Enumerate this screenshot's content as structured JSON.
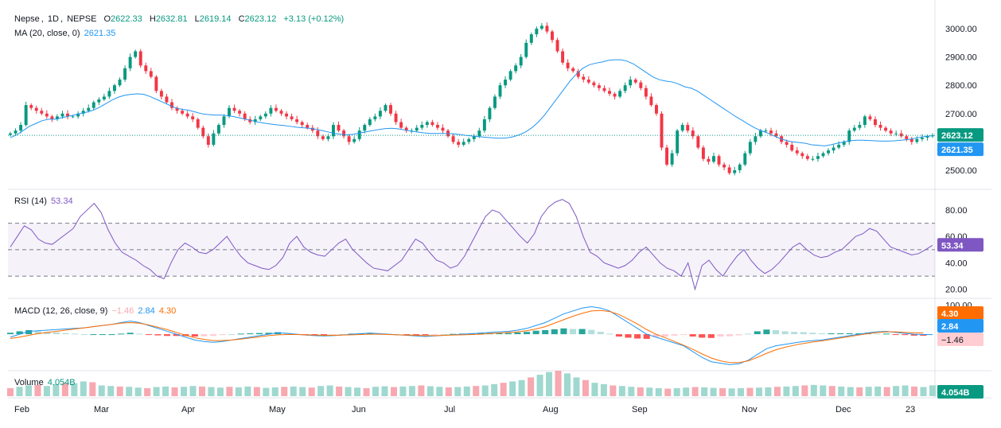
{
  "symbol": {
    "name": "Nepse",
    "interval": "1D",
    "exchange": "NEPSE",
    "open_label": "O",
    "open": "2622.33",
    "high_label": "H",
    "high": "2632.81",
    "low_label": "L",
    "low": "2619.14",
    "close_label": "C",
    "close": "2623.12",
    "change": "+3.13 (+0.12%)"
  },
  "legends": {
    "ma": {
      "title": "MA (20, close, 0)",
      "value": "2621.35"
    },
    "rsi": {
      "title": "RSI (14)",
      "value": "53.34"
    },
    "macd": {
      "title": "MACD (12, 26, close, 9)",
      "hist": "−1.46",
      "macd": "2.84",
      "signal": "4.30"
    },
    "volume": {
      "title": "Volume",
      "value": "4.054B"
    }
  },
  "badges": {
    "price": "2623.12",
    "ma": "2621.35",
    "rsi": "53.34",
    "macd_signal": "4.30",
    "macd_line": "2.84",
    "macd_hist": "−1.46",
    "volume": "4.054B"
  },
  "colors": {
    "up": "#089981",
    "down": "#f23645",
    "ma": "#2196f3",
    "rsi": "#7e57c2",
    "macd": "#2196f3",
    "signal": "#ff6d00",
    "grid": "#e0e3eb",
    "text": "#131722"
  },
  "chart_data": [
    {
      "type": "candlestick",
      "title": "Nepse, 1D, NEPSE",
      "x_ticks": [
        "Feb",
        "Mar",
        "Apr",
        "May",
        "Jun",
        "Jul",
        "Aug",
        "Sep",
        "Nov",
        "Dec",
        "23"
      ],
      "y_ticks": [
        "3000.00",
        "2900.00",
        "2800.00",
        "2700.00",
        "2500.00"
      ],
      "ylim": [
        2455,
        3045
      ],
      "close_series": [
        2630,
        2640,
        2660,
        2730,
        2720,
        2710,
        2700,
        2690,
        2680,
        2690,
        2700,
        2690,
        2690,
        2700,
        2710,
        2720,
        2740,
        2750,
        2760,
        2780,
        2800,
        2820,
        2860,
        2900,
        2920,
        2870,
        2850,
        2830,
        2780,
        2760,
        2740,
        2720,
        2710,
        2700,
        2690,
        2680,
        2650,
        2620,
        2590,
        2630,
        2660,
        2690,
        2720,
        2710,
        2700,
        2680,
        2670,
        2680,
        2690,
        2700,
        2720,
        2710,
        2700,
        2690,
        2680,
        2670,
        2660,
        2650,
        2640,
        2620,
        2610,
        2620,
        2660,
        2640,
        2620,
        2600,
        2610,
        2640,
        2660,
        2680,
        2690,
        2710,
        2730,
        2700,
        2670,
        2650,
        2640,
        2640,
        2650,
        2660,
        2670,
        2660,
        2650,
        2640,
        2620,
        2600,
        2590,
        2600,
        2610,
        2620,
        2640,
        2680,
        2720,
        2760,
        2800,
        2820,
        2850,
        2870,
        2900,
        2950,
        2980,
        3000,
        3010,
        2990,
        2960,
        2920,
        2880,
        2860,
        2850,
        2830,
        2820,
        2810,
        2800,
        2790,
        2780,
        2770,
        2760,
        2780,
        2800,
        2820,
        2810,
        2790,
        2760,
        2730,
        2700,
        2580,
        2520,
        2560,
        2640,
        2660,
        2640,
        2620,
        2580,
        2540,
        2530,
        2550,
        2520,
        2510,
        2490,
        2500,
        2520,
        2560,
        2600,
        2620,
        2640,
        2640,
        2630,
        2620,
        2600,
        2590,
        2570,
        2560,
        2550,
        2540,
        2540,
        2550,
        2560,
        2570,
        2580,
        2590,
        2600,
        2640,
        2650,
        2660,
        2690,
        2680,
        2660,
        2650,
        2640,
        2630,
        2630,
        2620,
        2610,
        2600,
        2610,
        2615,
        2620,
        2623.12
      ],
      "ma_series": [
        2615,
        2625,
        2640,
        2655,
        2665,
        2675,
        2680,
        2680,
        2685,
        2690,
        2695,
        2700,
        2705,
        2712,
        2722,
        2735,
        2748,
        2758,
        2765,
        2768,
        2770,
        2768,
        2760,
        2750,
        2740,
        2730,
        2720,
        2715,
        2712,
        2706,
        2700,
        2697,
        2695,
        2695,
        2693,
        2690,
        2685,
        2680,
        2675,
        2670,
        2666,
        2663,
        2660,
        2658,
        2655,
        2652,
        2650,
        2648,
        2645,
        2640,
        2635,
        2630,
        2627,
        2625,
        2627,
        2632,
        2636,
        2640,
        2644,
        2647,
        2648,
        2646,
        2642,
        2638,
        2635,
        2632,
        2630,
        2630,
        2630,
        2630,
        2628,
        2625,
        2622,
        2620,
        2618,
        2616,
        2614,
        2613,
        2614,
        2618,
        2625,
        2635,
        2650,
        2670,
        2695,
        2725,
        2755,
        2785,
        2815,
        2840,
        2860,
        2872,
        2878,
        2882,
        2888,
        2890,
        2890,
        2885,
        2875,
        2860,
        2845,
        2830,
        2820,
        2815,
        2812,
        2805,
        2795,
        2790,
        2780,
        2765,
        2750,
        2735,
        2720,
        2705,
        2690,
        2677,
        2663,
        2650,
        2640,
        2632,
        2622,
        2612,
        2605,
        2600,
        2598,
        2595,
        2590,
        2588,
        2586,
        2590,
        2595,
        2600,
        2604,
        2606,
        2606,
        2605,
        2604,
        2603,
        2603,
        2604,
        2606,
        2608,
        2612,
        2616,
        2620,
        2621.35
      ]
    },
    {
      "type": "line",
      "title": "RSI (14)",
      "y_ticks": [
        "80.00",
        "60.00",
        "40.00",
        "20.00"
      ],
      "bands": [
        30,
        50,
        70
      ],
      "ylim": [
        15,
        92
      ],
      "series": [
        {
          "values": [
            52,
            60,
            68,
            65,
            58,
            55,
            54,
            58,
            62,
            66,
            75,
            80,
            85,
            78,
            65,
            55,
            48,
            45,
            42,
            38,
            35,
            30,
            28,
            40,
            50,
            55,
            52,
            48,
            47,
            50,
            55,
            60,
            52,
            45,
            40,
            38,
            36,
            35,
            38,
            44,
            55,
            60,
            52,
            48,
            46,
            45,
            50,
            55,
            58,
            50,
            45,
            40,
            36,
            35,
            34,
            38,
            42,
            50,
            58,
            55,
            48,
            42,
            40,
            36,
            38,
            45,
            55,
            65,
            75,
            80,
            78,
            72,
            66,
            60,
            55,
            62,
            75,
            82,
            86,
            88,
            85,
            75,
            60,
            48,
            45,
            40,
            38,
            36,
            38,
            42,
            48,
            52,
            46,
            40,
            36,
            34,
            30,
            40,
            20,
            38,
            42,
            35,
            30,
            38,
            45,
            50,
            42,
            36,
            32,
            35,
            40,
            46,
            52,
            55,
            50,
            46,
            44,
            45,
            48,
            50,
            55,
            60,
            62,
            66,
            64,
            58,
            52,
            50,
            48,
            46,
            47,
            50,
            53.34
          ]
        }
      ]
    },
    {
      "type": "line",
      "title": "MACD (12, 26, close, 9)",
      "y_ticks": [
        "100.00"
      ],
      "ylim": [
        -115,
        110
      ],
      "series": [
        {
          "name": "MACD",
          "values": [
            -10,
            0,
            10,
            12,
            14,
            16,
            18,
            20,
            22,
            26,
            30,
            34,
            40,
            45,
            40,
            30,
            20,
            10,
            0,
            -10,
            -20,
            -25,
            -28,
            -25,
            -20,
            -15,
            -10,
            -5,
            0,
            5,
            3,
            0,
            -3,
            -5,
            -6,
            -5,
            -3,
            0,
            2,
            4,
            2,
            0,
            -2,
            -4,
            -6,
            -8,
            -6,
            -4,
            -2,
            0,
            2,
            4,
            6,
            8,
            10,
            14,
            20,
            30,
            40,
            55,
            70,
            80,
            90,
            95,
            90,
            80,
            60,
            40,
            20,
            0,
            -10,
            -20,
            -30,
            -40,
            -60,
            -80,
            -95,
            -100,
            -105,
            -102,
            -90,
            -70,
            -50,
            -40,
            -35,
            -30,
            -25,
            -22,
            -20,
            -15,
            -10,
            -5,
            0,
            5,
            8,
            10,
            6,
            3,
            0,
            -1,
            -1.46
          ]
        },
        {
          "name": "Signal",
          "values": [
            -15,
            -10,
            -4,
            2,
            6,
            10,
            14,
            18,
            22,
            26,
            30,
            34,
            38,
            40,
            38,
            32,
            24,
            16,
            6,
            -4,
            -12,
            -18,
            -22,
            -22,
            -20,
            -17,
            -13,
            -9,
            -5,
            -2,
            -1,
            -1,
            -2,
            -3,
            -4,
            -4,
            -3,
            -2,
            -1,
            0,
            0,
            -1,
            -2,
            -3,
            -4,
            -5,
            -5,
            -4,
            -3,
            -2,
            -1,
            0,
            2,
            4,
            6,
            8,
            12,
            18,
            26,
            38,
            50,
            62,
            72,
            80,
            82,
            78,
            68,
            52,
            35,
            16,
            0,
            -12,
            -25,
            -38,
            -52,
            -68,
            -82,
            -92,
            -98,
            -98,
            -92,
            -80,
            -66,
            -54,
            -45,
            -38,
            -32,
            -27,
            -23,
            -18,
            -13,
            -8,
            -3,
            2,
            6,
            8,
            8,
            6,
            5,
            4.3
          ]
        }
      ]
    },
    {
      "type": "bar",
      "title": "Volume",
      "values": [
        3,
        3.5,
        4,
        4.2,
        3.8,
        4.5,
        5,
        4.8,
        5.5,
        5.2,
        4,
        3.8,
        3.6,
        3.5,
        3.2,
        3,
        3.4,
        3.6,
        3.3,
        3.5,
        3.8,
        3.6,
        3.4,
        3.2,
        3.5,
        3.3,
        3.6,
        3.4,
        3.1,
        3.3,
        3.5,
        3.6,
        3.4,
        3.2,
        3.8,
        4,
        3.6,
        3.4,
        3.2,
        3,
        3.5,
        3.7,
        3.4,
        3.6,
        3.8,
        4,
        3.7,
        3.5,
        3.3,
        3.4,
        3.6,
        3.8,
        4,
        4.5,
        5,
        5.5,
        6,
        7,
        8,
        9,
        9.5,
        8.5,
        7,
        6,
        5,
        4.5,
        4,
        3.8,
        3.5,
        3.3,
        3.2,
        3,
        2.8,
        3,
        3.2,
        3.4,
        3.3,
        3.1,
        3,
        2.9,
        3,
        3.1,
        3.2,
        3.3,
        3.5,
        3.6,
        3.8,
        4,
        4.2,
        4,
        3.8,
        3.6,
        3.4,
        3.3,
        3.5,
        3.6,
        3.4,
        3.8,
        4,
        3.6,
        3.4,
        4.054
      ]
    }
  ]
}
